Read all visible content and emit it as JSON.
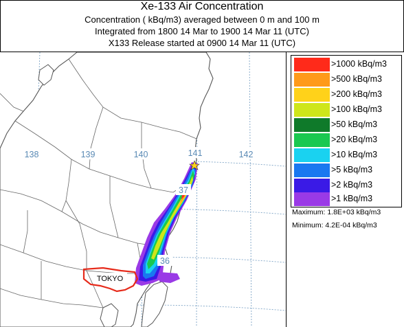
{
  "header": {
    "title": "Xe-133 Air Concentration",
    "line1": "Concentration  ( kBq/m3) averaged between      0 m and   100 m",
    "line2": "Integrated from 1800 14 Mar to 1900 14 Mar 11 (UTC)",
    "line3": "X133 Release started at 0900 14 Mar 11 (UTC)"
  },
  "map": {
    "longitude_labels": [
      "138",
      "139",
      "140",
      "141",
      "142"
    ],
    "latitude_labels": [
      "37",
      "36"
    ],
    "city_label": "TOKYO"
  },
  "legend": {
    "items": [
      {
        "label": ">1000  kBq/m3",
        "color": "#ff2a1a"
      },
      {
        "label": ">500  kBq/m3",
        "color": "#ff9a1a"
      },
      {
        "label": ">200  kBq/m3",
        "color": "#ffd21a"
      },
      {
        "label": ">100  kBq/m3",
        "color": "#cfe61a"
      },
      {
        "label": ">50  kBq/m3",
        "color": "#0f7a2a"
      },
      {
        "label": ">20  kBq/m3",
        "color": "#1ac850"
      },
      {
        "label": ">10  kBq/m3",
        "color": "#1ad2f0"
      },
      {
        "label": ">5  kBq/m3",
        "color": "#1a78f0"
      },
      {
        "label": ">2  kBq/m3",
        "color": "#3a1ae6"
      },
      {
        "label": ">1  kBq/m3",
        "color": "#9a3ae6"
      }
    ],
    "maximum": "Maximum:  1.8E+03  kBq/m3",
    "minimum": "Minimum:  4.2E-04  kBq/m3"
  }
}
